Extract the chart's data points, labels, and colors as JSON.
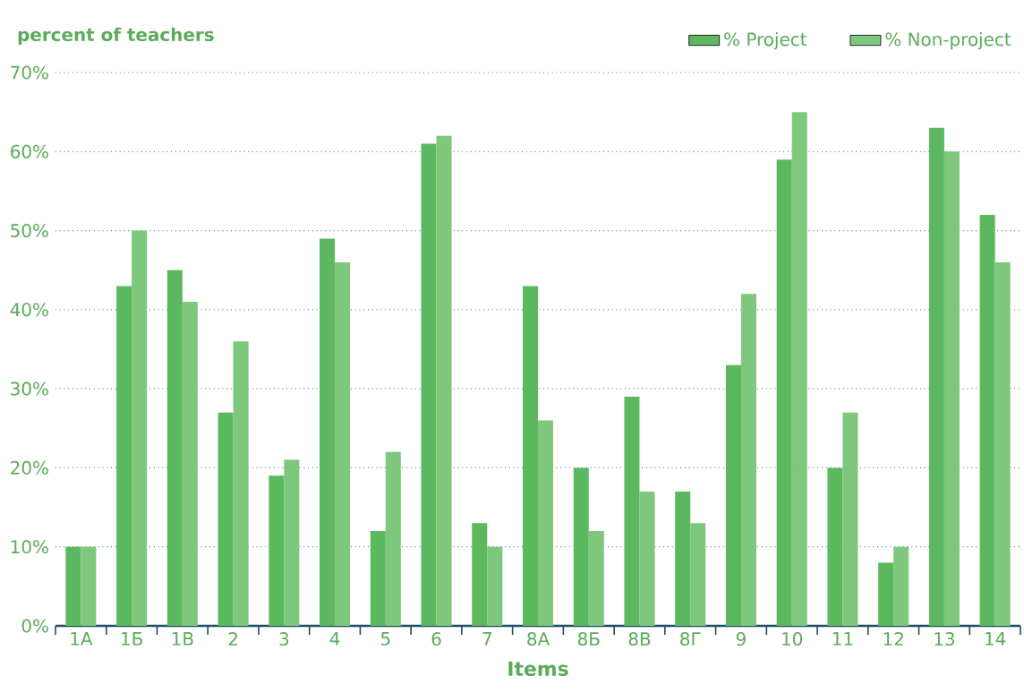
{
  "chart_data": {
    "type": "bar",
    "xlabel": "Items",
    "ylabel": "percent of teachers",
    "categories": [
      "1А",
      "1Б",
      "1В",
      "2",
      "3",
      "4",
      "5",
      "6",
      "7",
      "8А",
      "8Б",
      "8В",
      "8Г",
      "9",
      "10",
      "11",
      "12",
      "13",
      "14"
    ],
    "series": [
      {
        "name": "% Project",
        "color": "#5cb85f",
        "values": [
          10,
          43,
          45,
          27,
          19,
          49,
          12,
          61,
          13,
          43,
          20,
          29,
          17,
          33,
          59,
          20,
          8,
          63,
          52
        ]
      },
      {
        "name": "% Non-project",
        "color": "#7dc87d",
        "values": [
          10,
          50,
          41,
          36,
          21,
          46,
          22,
          62,
          10,
          26,
          12,
          17,
          13,
          42,
          65,
          27,
          10,
          60,
          46
        ]
      }
    ],
    "ylim": [
      0,
      70
    ],
    "yticks": [
      {
        "value": 0,
        "label": "0%"
      },
      {
        "value": 10,
        "label": "10%"
      },
      {
        "value": 20,
        "label": "20%"
      },
      {
        "value": 30,
        "label": "30%"
      },
      {
        "value": 40,
        "label": "40%"
      },
      {
        "value": 50,
        "label": "50%"
      },
      {
        "value": 60,
        "label": "60%"
      },
      {
        "value": 70,
        "label": "70%"
      }
    ],
    "grid": "y",
    "legend": "top right"
  }
}
